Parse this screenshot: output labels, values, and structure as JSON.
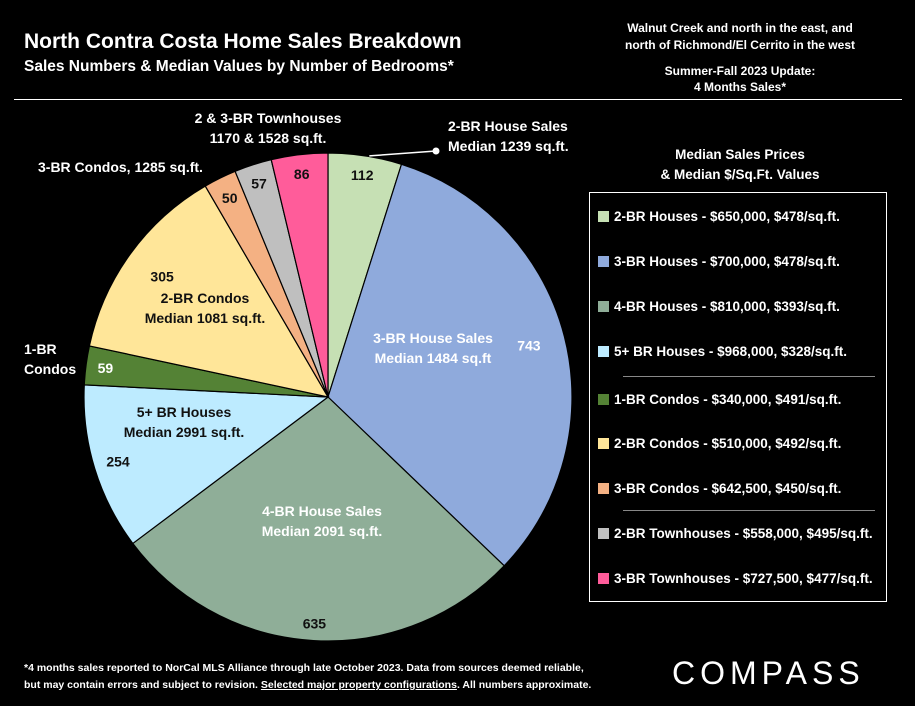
{
  "header": {
    "title": "North Contra Costa Home Sales Breakdown",
    "subtitle": "Sales Numbers & Median Values by Number of Bedrooms*",
    "region_line1": "Walnut Creek and north in the east, and",
    "region_line2": "north of Richmond/El Cerrito in the west",
    "update_line1": "Summer-Fall 2023 Update:",
    "update_line2": "4 Months Sales*"
  },
  "chart_data": {
    "type": "pie",
    "slices": [
      {
        "key": "br2_house",
        "value": 112,
        "color": "#c6e0b4",
        "label": [
          "2-BR House Sales",
          "Median 1239 sq.ft."
        ]
      },
      {
        "key": "br3_house",
        "value": 743,
        "color": "#8faadc",
        "label": [
          "3-BR House Sales",
          "Median 1484 sq.ft"
        ]
      },
      {
        "key": "br4_house",
        "value": 635,
        "color": "#8fae98",
        "label": [
          "4-BR House Sales",
          "Median 2091 sq.ft."
        ]
      },
      {
        "key": "br5_house",
        "value": 254,
        "color": "#bdebff",
        "label": [
          "5+ BR Houses",
          "Median 2991 sq.ft."
        ]
      },
      {
        "key": "br1_condo",
        "value": 59,
        "color": "#548235",
        "label": [
          "1-BR",
          "Condos"
        ]
      },
      {
        "key": "br2_condo",
        "value": 305,
        "color": "#ffe699",
        "label": [
          "2-BR Condos",
          "Median 1081 sq.ft."
        ]
      },
      {
        "key": "br3_condo",
        "value": 50,
        "color": "#f4b183",
        "label": [
          "3-BR Condos, 1285 sq.ft."
        ]
      },
      {
        "key": "br2_town",
        "value": 57,
        "color": "#bfbfbf",
        "label": []
      },
      {
        "key": "br3_town",
        "value": 86,
        "color": "#ff5c9a",
        "label": []
      }
    ],
    "group_label": [
      "2 & 3-BR Townhouses",
      "1170 & 1528 sq.ft."
    ],
    "start": "12 o'clock",
    "direction": "clockwise"
  },
  "legend": {
    "title_line1": "Median Sales Prices",
    "title_line2": "& Median $/Sq.Ft. Values",
    "items": [
      {
        "text": "2-BR Houses - $650,000, $478/sq.ft.",
        "color": "#c6e0b4"
      },
      {
        "text": "3-BR Houses - $700,000, $478/sq.ft.",
        "color": "#8faadc"
      },
      {
        "text": "4-BR Houses - $810,000, $393/sq.ft.",
        "color": "#8fae98"
      },
      {
        "text": "5+ BR Houses - $968,000, $328/sq.ft.",
        "color": "#bdebff"
      },
      {
        "text": "1-BR Condos - $340,000, $491/sq.ft.",
        "color": "#548235"
      },
      {
        "text": "2-BR Condos - $510,000, $492/sq.ft.",
        "color": "#ffe699"
      },
      {
        "text": "3-BR Condos - $642,500, $450/sq.ft.",
        "color": "#f4b183"
      },
      {
        "text": "2-BR Townhouses - $558,000, $495/sq.ft.",
        "color": "#bfbfbf"
      },
      {
        "text": "3-BR Townhouses - $727,500, $477/sq.ft.",
        "color": "#ff5c9a"
      }
    ]
  },
  "footnote": {
    "line1": "*4 months sales reported to NorCal MLS Alliance through late October 2023. Data from sources deemed reliable,",
    "line2_a": "but may contain errors and subject to revision. ",
    "line2_link": "Selected major property configurations",
    "line2_b": ". All numbers approximate."
  },
  "brand": "COMPASS"
}
